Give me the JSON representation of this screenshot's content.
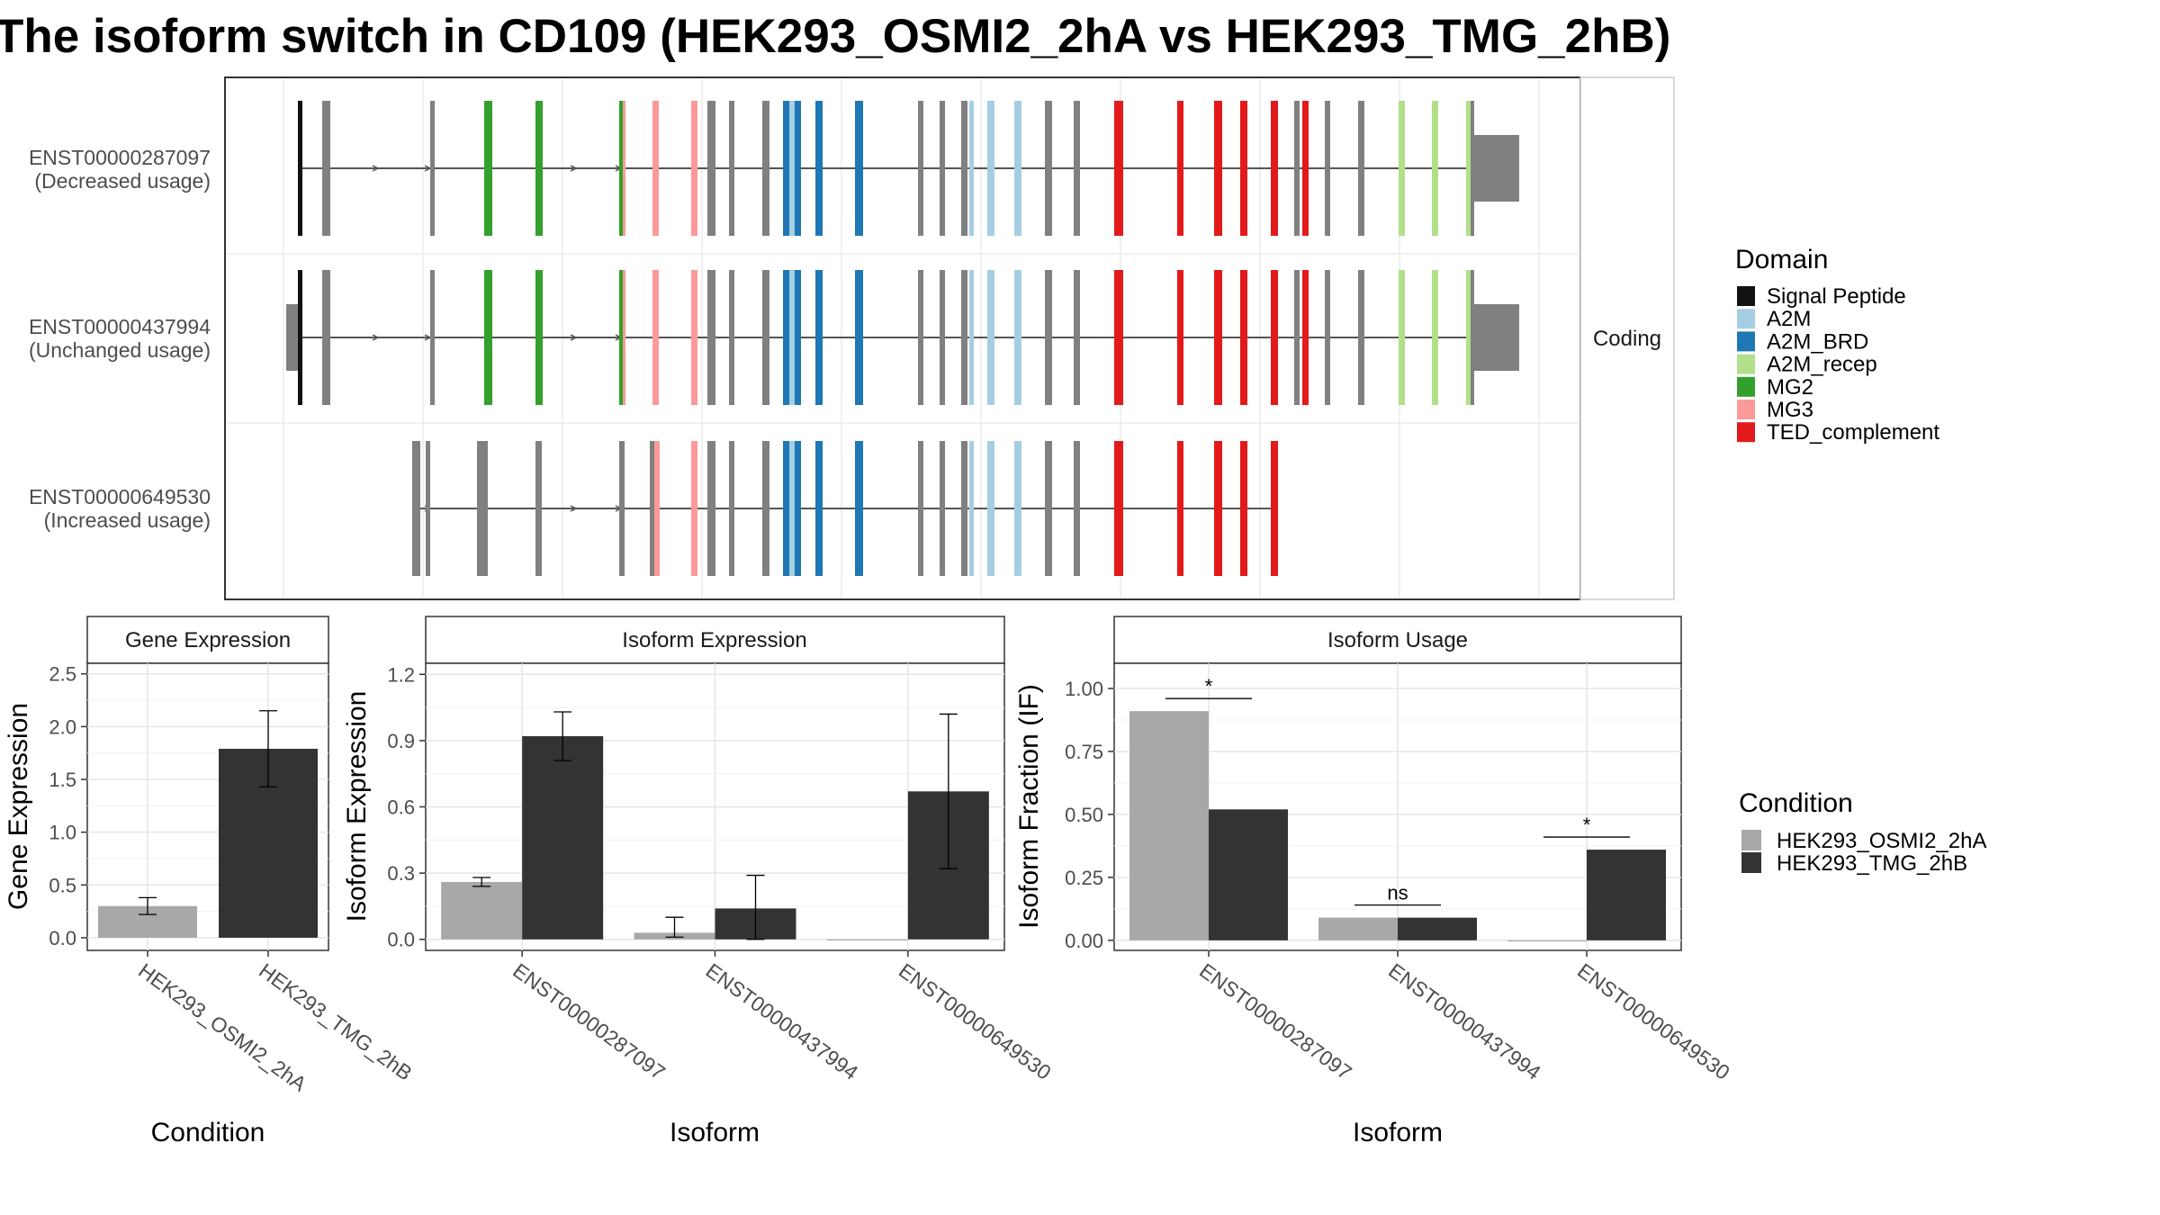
{
  "title": "The isoform switch in CD109 (HEK293_OSMI2_2hA vs HEK293_TMG_2hB)",
  "colors": {
    "condition_a": "#a8a8a8",
    "condition_b": "#333333",
    "non_domain_exon": "#808080",
    "Signal Peptide": "#111111",
    "A2M": "#a6cee3",
    "A2M_BRD": "#1f78b4",
    "A2M_recep": "#b2df8a",
    "MG2": "#33a02c",
    "MG3": "#fb9a99",
    "TED_complement": "#e31a1c"
  },
  "structure": {
    "facet_label": "Coding",
    "isoforms": [
      {
        "id": "ENST00000287097",
        "label": "(Decreased usage)"
      },
      {
        "id": "ENST00000437994",
        "label": "(Unchanged usage)"
      },
      {
        "id": "ENST00000649530",
        "label": "(Increased usage)"
      }
    ]
  },
  "legend_domain": {
    "title": "Domain",
    "items": [
      {
        "name": "Signal Peptide",
        "color": "#111111"
      },
      {
        "name": "A2M",
        "color": "#a6cee3"
      },
      {
        "name": "A2M_BRD",
        "color": "#1f78b4"
      },
      {
        "name": "A2M_recep",
        "color": "#b2df8a"
      },
      {
        "name": "MG2",
        "color": "#33a02c"
      },
      {
        "name": "MG3",
        "color": "#fb9a99"
      },
      {
        "name": "TED_complement",
        "color": "#e31a1c"
      }
    ]
  },
  "legend_condition": {
    "title": "Condition",
    "items": [
      {
        "name": "HEK293_OSMI2_2hA",
        "color": "#a8a8a8"
      },
      {
        "name": "HEK293_TMG_2hB",
        "color": "#333333"
      }
    ]
  },
  "chart_data": [
    {
      "type": "bar",
      "title": "Gene Expression",
      "xlabel": "Condition",
      "ylabel": "Gene Expression",
      "categories": [
        "HEK293_OSMI2_2hA",
        "HEK293_TMG_2hB"
      ],
      "values": [
        0.3,
        1.79
      ],
      "errors": [
        [
          0.22,
          0.38
        ],
        [
          1.43,
          2.15
        ]
      ],
      "yticks": [
        "0.0",
        "0.5",
        "1.0",
        "1.5",
        "2.0",
        "2.5"
      ],
      "ylim": [
        -0.12,
        2.6
      ],
      "grid": true
    },
    {
      "type": "bar",
      "title": "Isoform Expression",
      "xlabel": "Isoform",
      "ylabel": "Isoform Expression",
      "categories": [
        "ENST00000287097",
        "ENST00000437994",
        "ENST00000649530"
      ],
      "series": [
        {
          "values": [
            0.26,
            0.03,
            0.0
          ],
          "errors": [
            [
              0.24,
              0.28
            ],
            [
              0.01,
              0.1
            ],
            [
              0.0,
              0.0
            ]
          ]
        },
        {
          "values": [
            0.92,
            0.14,
            0.67
          ],
          "errors": [
            [
              0.81,
              1.03
            ],
            [
              0.0,
              0.29
            ],
            [
              0.32,
              1.02
            ]
          ]
        }
      ],
      "yticks": [
        "0.0",
        "0.3",
        "0.6",
        "0.9",
        "1.2"
      ],
      "ylim": [
        -0.05,
        1.25
      ],
      "grid": true
    },
    {
      "type": "bar",
      "title": "Isoform Usage",
      "xlabel": "Isoform",
      "ylabel": "Isoform Fraction (IF)",
      "categories": [
        "ENST00000287097",
        "ENST00000437994",
        "ENST00000649530"
      ],
      "series": [
        {
          "values": [
            0.91,
            0.09,
            0.0
          ]
        },
        {
          "values": [
            0.52,
            0.09,
            0.36
          ]
        }
      ],
      "significance": [
        "*",
        "ns",
        "*"
      ],
      "yticks": [
        "0.00",
        "0.25",
        "0.50",
        "0.75",
        "1.00"
      ],
      "ylim": [
        -0.04,
        1.1
      ],
      "grid": true
    }
  ]
}
